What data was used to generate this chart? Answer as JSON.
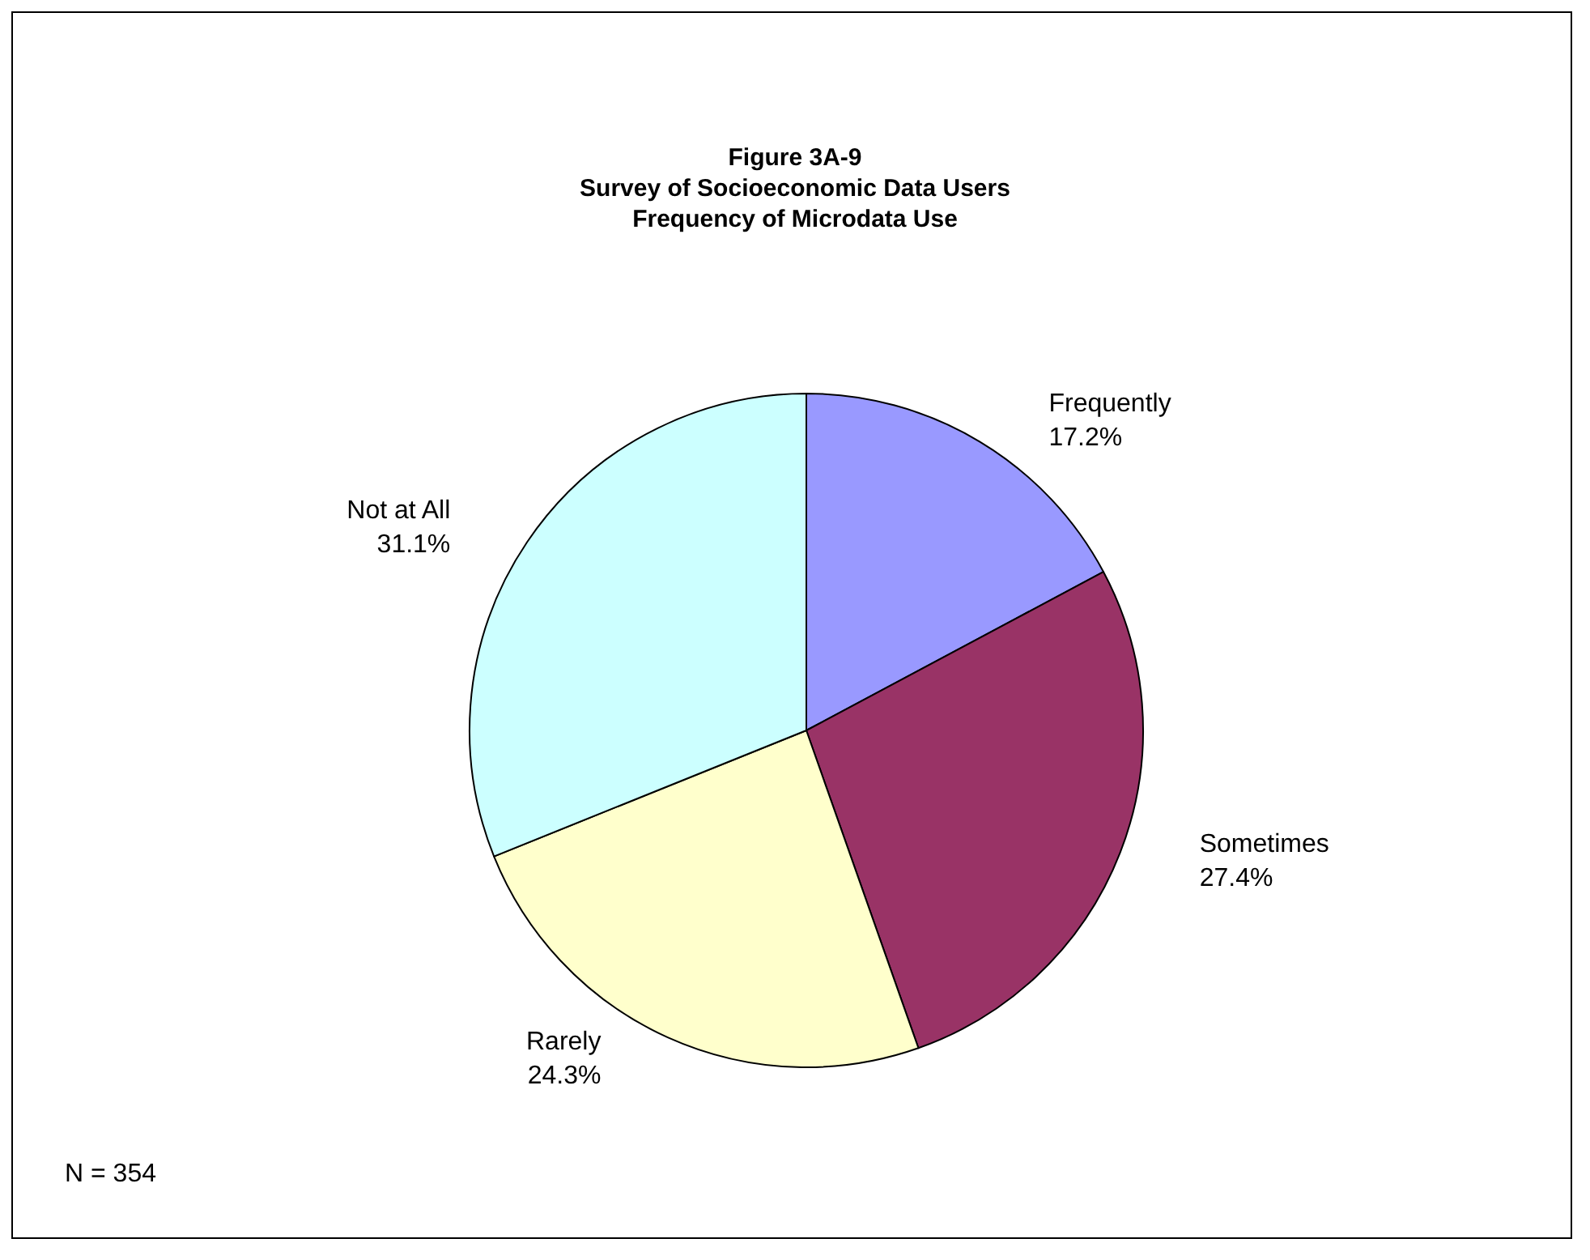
{
  "chart_data": {
    "type": "pie",
    "title": "Figure 3A-9\nSurvey of Socioeconomic Data Users\nFrequency of Microdata Use",
    "categories": [
      "Frequently",
      "Sometimes",
      "Rarely",
      "Not at All"
    ],
    "values": [
      17.2,
      27.4,
      24.3,
      31.1
    ],
    "colors": [
      "#9999ff",
      "#993366",
      "#ffffcc",
      "#ccffff"
    ],
    "value_labels": [
      "17.2%",
      "27.4%",
      "24.3%",
      "31.1%"
    ],
    "annotations": [
      "N = 354"
    ]
  }
}
